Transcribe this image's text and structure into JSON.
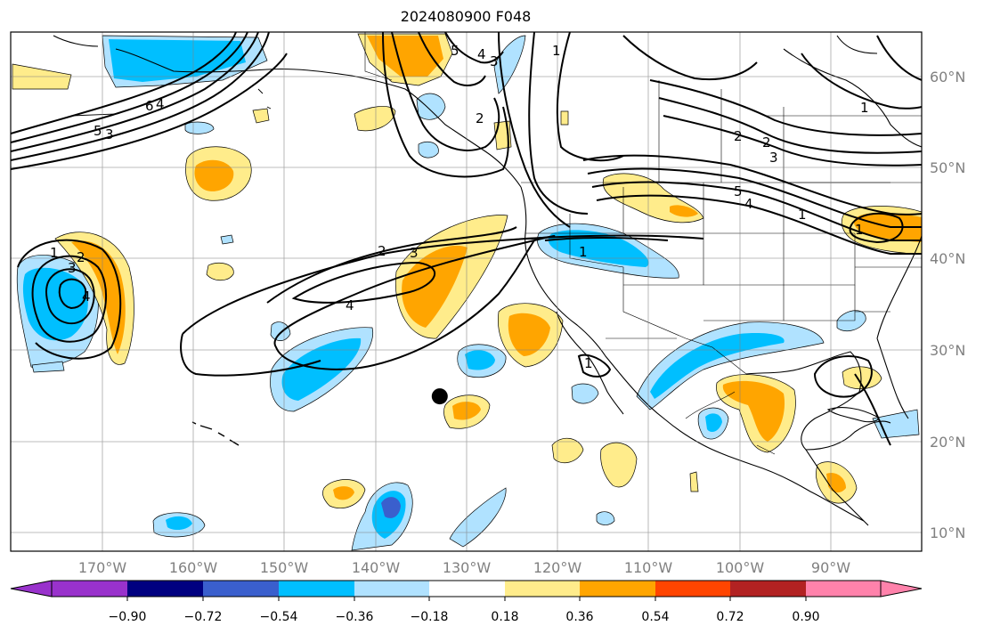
{
  "title": "2024080900 F048",
  "map": {
    "lon_range": [
      -180,
      -80
    ],
    "lat_range": [
      8,
      65
    ],
    "lon_ticks": [
      "170°W",
      "160°W",
      "150°W",
      "140°W",
      "130°W",
      "120°W",
      "110°W",
      "100°W",
      "90°W"
    ],
    "lat_ticks": [
      "10°N",
      "20°N",
      "30°N",
      "40°N",
      "50°N",
      "60°N"
    ],
    "grid": true,
    "marker": {
      "lon": -132.9,
      "lat": 25
    },
    "contour_labels": [
      "6",
      "5",
      "4",
      "3",
      "2",
      "1",
      "2",
      "3",
      "4",
      "1",
      "1",
      "1",
      "2",
      "3",
      "4",
      "5",
      "4",
      "3",
      "2",
      "1",
      "5",
      "4",
      "3",
      "2",
      "1",
      "1"
    ]
  },
  "colorbar": {
    "tick_labels": [
      "−0.90",
      "−0.72",
      "−0.54",
      "−0.36",
      "−0.18",
      "0.18",
      "0.36",
      "0.54",
      "0.72",
      "0.90"
    ],
    "colors": [
      "#9932cc",
      "#000080",
      "#3a5fcd",
      "#00bfff",
      "#b0e2ff",
      "#ffffff",
      "#ffec8b",
      "#ffa500",
      "#ff4500",
      "#b22222",
      "#ff82ab"
    ]
  }
}
